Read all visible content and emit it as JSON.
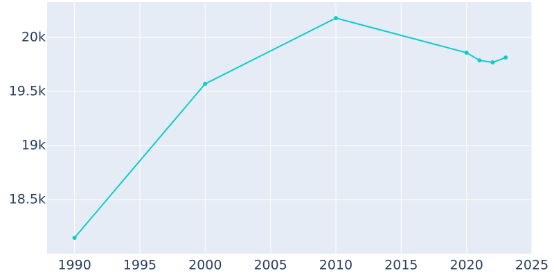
{
  "chart_data": {
    "type": "line",
    "x": [
      1990,
      2000,
      2010,
      2020,
      2021,
      2022,
      2023
    ],
    "series": [
      {
        "color": "#0fcccc",
        "values": [
          18147,
          19571,
          20179,
          19859,
          19788,
          19769,
          19814
        ]
      }
    ],
    "xlim": [
      1987.9,
      2025
    ],
    "xticks": [
      1990,
      1995,
      2000,
      2005,
      2010,
      2015,
      2020,
      2025
    ],
    "ylim": [
      18000,
      20327
    ],
    "yticks": [
      {
        "value": 18500,
        "label": "18.5k"
      },
      {
        "value": 19000,
        "label": "19k"
      },
      {
        "value": 19500,
        "label": "19.5k"
      },
      {
        "value": 20000,
        "label": "20k"
      }
    ],
    "grid": true
  }
}
